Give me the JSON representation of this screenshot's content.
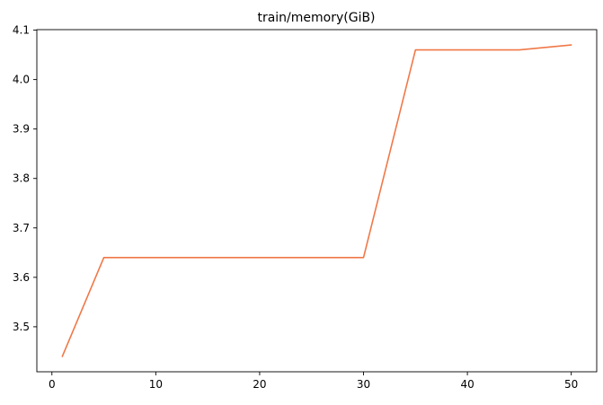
{
  "chart_data": {
    "type": "line",
    "title": "train/memory(GiB)",
    "xlabel": "",
    "ylabel": "",
    "xlim": [
      -1.45,
      52.45
    ],
    "ylim": [
      3.409,
      4.101
    ],
    "xticks": [
      0,
      10,
      20,
      30,
      40,
      50
    ],
    "yticks": [
      3.5,
      3.6,
      3.7,
      3.8,
      3.9,
      4.0,
      4.1
    ],
    "grid": false,
    "legend": false,
    "series": [
      {
        "color": "#f07848",
        "x": [
          1,
          5,
          10,
          15,
          20,
          25,
          30,
          35,
          40,
          45,
          50
        ],
        "y": [
          3.44,
          3.64,
          3.64,
          3.64,
          3.64,
          3.64,
          3.64,
          4.06,
          4.06,
          4.06,
          4.07
        ]
      }
    ]
  }
}
